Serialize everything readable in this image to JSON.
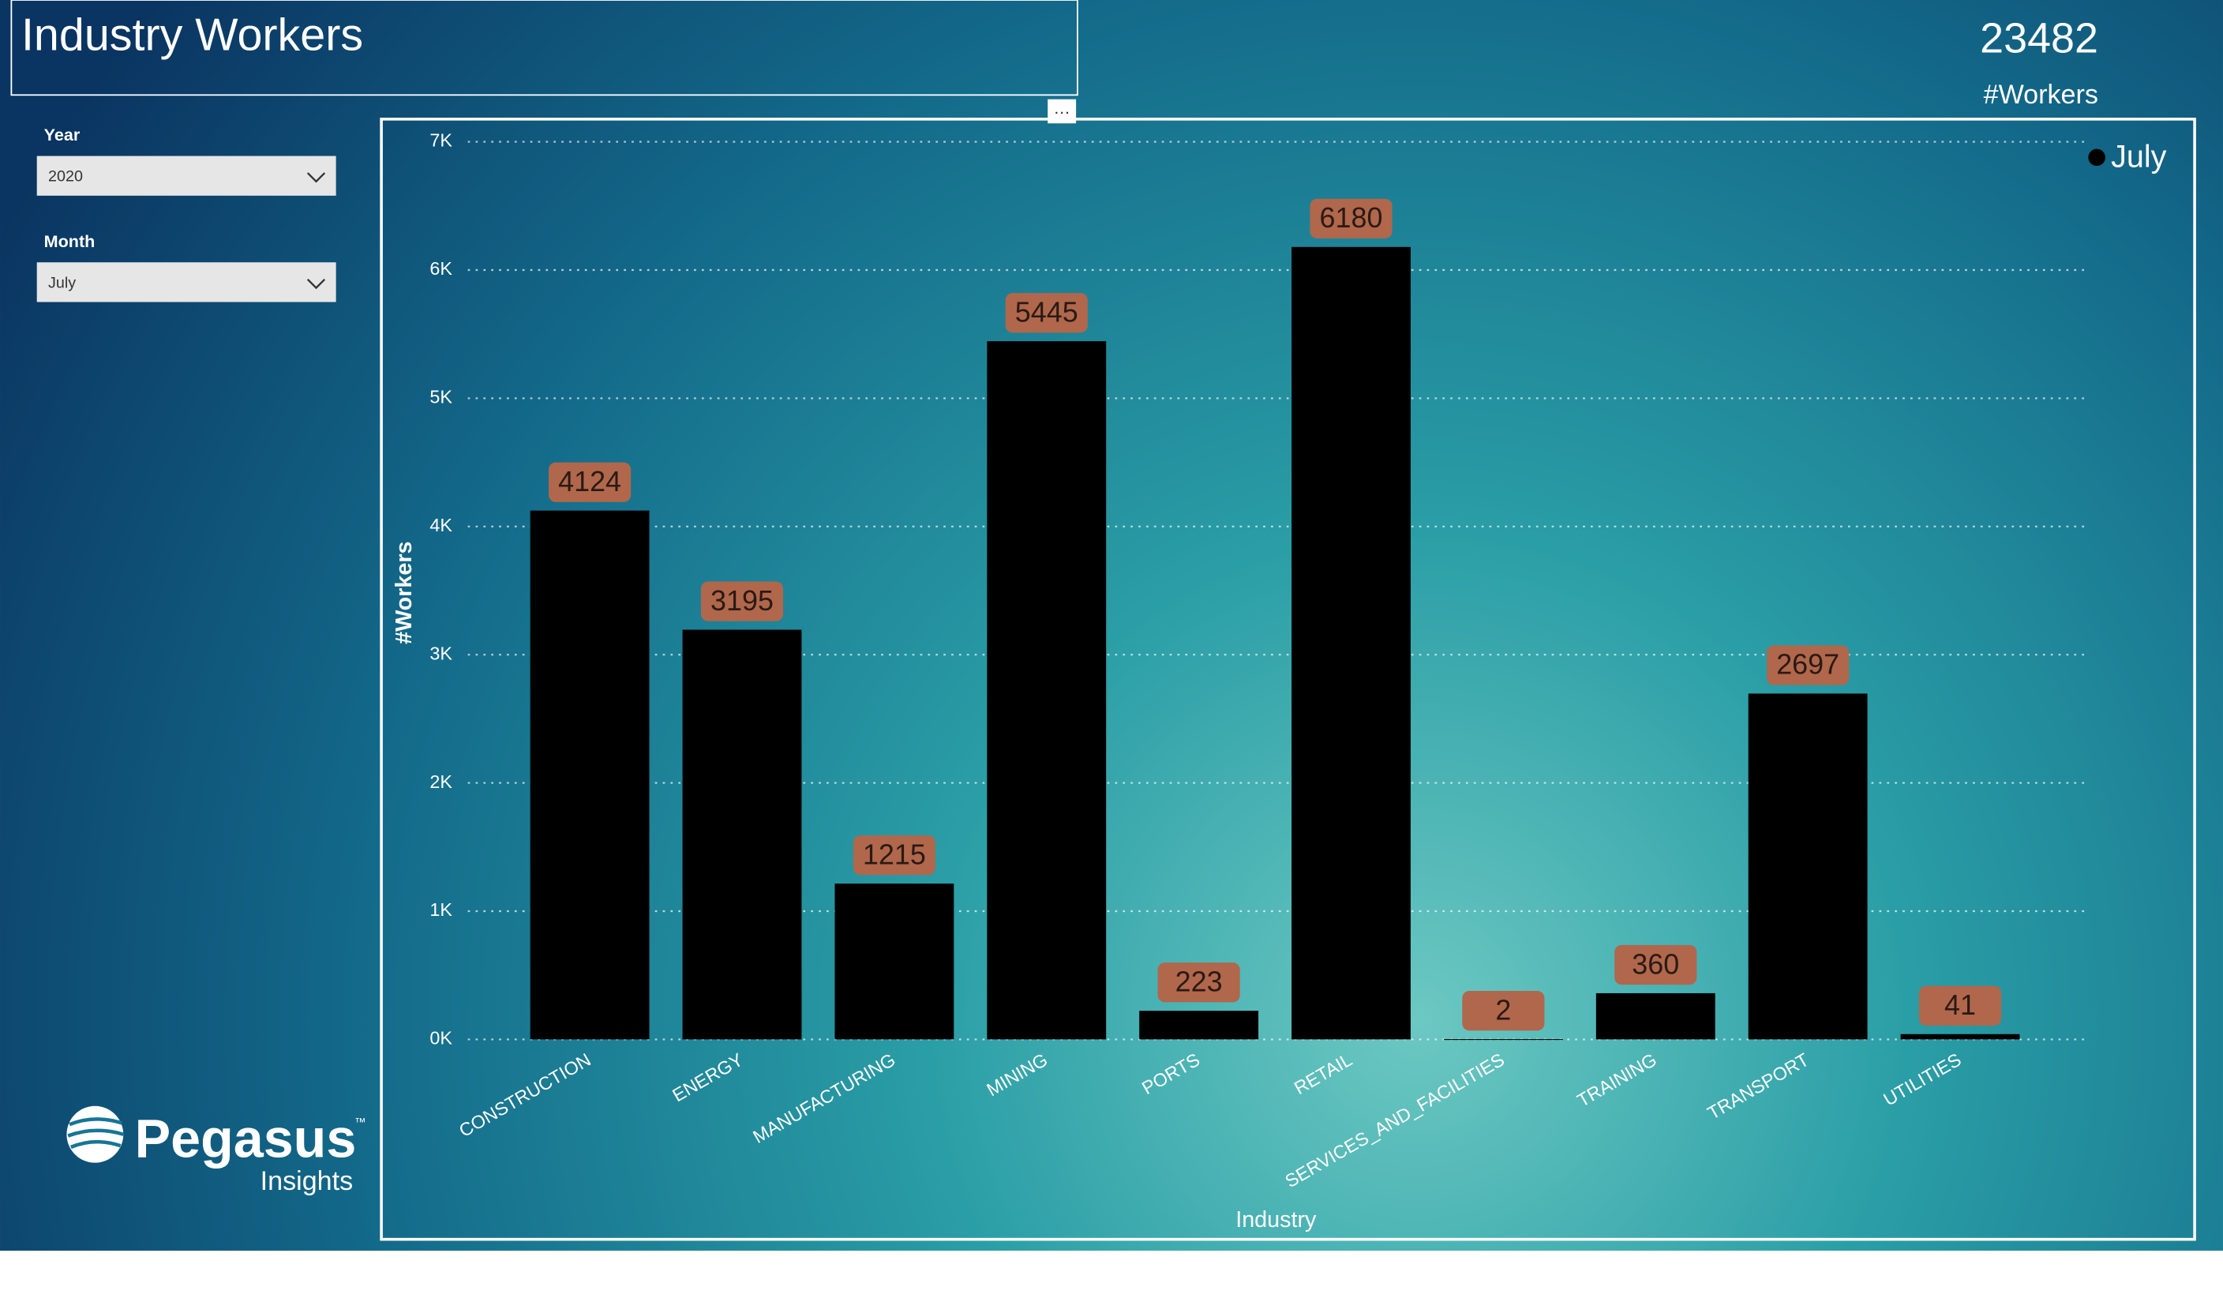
{
  "header": {
    "title": "Industry Workers"
  },
  "kpi": {
    "value": 23482,
    "label": "#Workers"
  },
  "filters": [
    {
      "label": "Year",
      "selected": "2020"
    },
    {
      "label": "Month",
      "selected": "July"
    }
  ],
  "logo": {
    "name": "Pegasus",
    "tagline": "Insights",
    "mark": "™"
  },
  "chart_data": {
    "type": "bar",
    "x_label": "Industry",
    "y_label": "#Workers",
    "categories": [
      "CONSTRUCTION",
      "ENERGY",
      "MANUFACTURING",
      "MINING",
      "PORTS",
      "RETAIL",
      "SERVICES_AND_FACILITIES",
      "TRAINING",
      "TRANSPORT",
      "UTILITIES"
    ],
    "series": [
      {
        "name": "July",
        "color": "#000000",
        "values": [
          4124,
          3195,
          1215,
          5445,
          223,
          6180,
          2,
          360,
          2697,
          41
        ]
      }
    ],
    "ylim": [
      0,
      7000
    ],
    "yticks": [
      {
        "value": 0,
        "label": "0K"
      },
      {
        "value": 1000,
        "label": "1K"
      },
      {
        "value": 2000,
        "label": "2K"
      },
      {
        "value": 3000,
        "label": "3K"
      },
      {
        "value": 4000,
        "label": "4K"
      },
      {
        "value": 5000,
        "label": "5K"
      },
      {
        "value": 6000,
        "label": "6K"
      },
      {
        "value": 7000,
        "label": "7K"
      }
    ],
    "grid": true,
    "legend_position": "top-right",
    "label_color": "#b0674b"
  }
}
